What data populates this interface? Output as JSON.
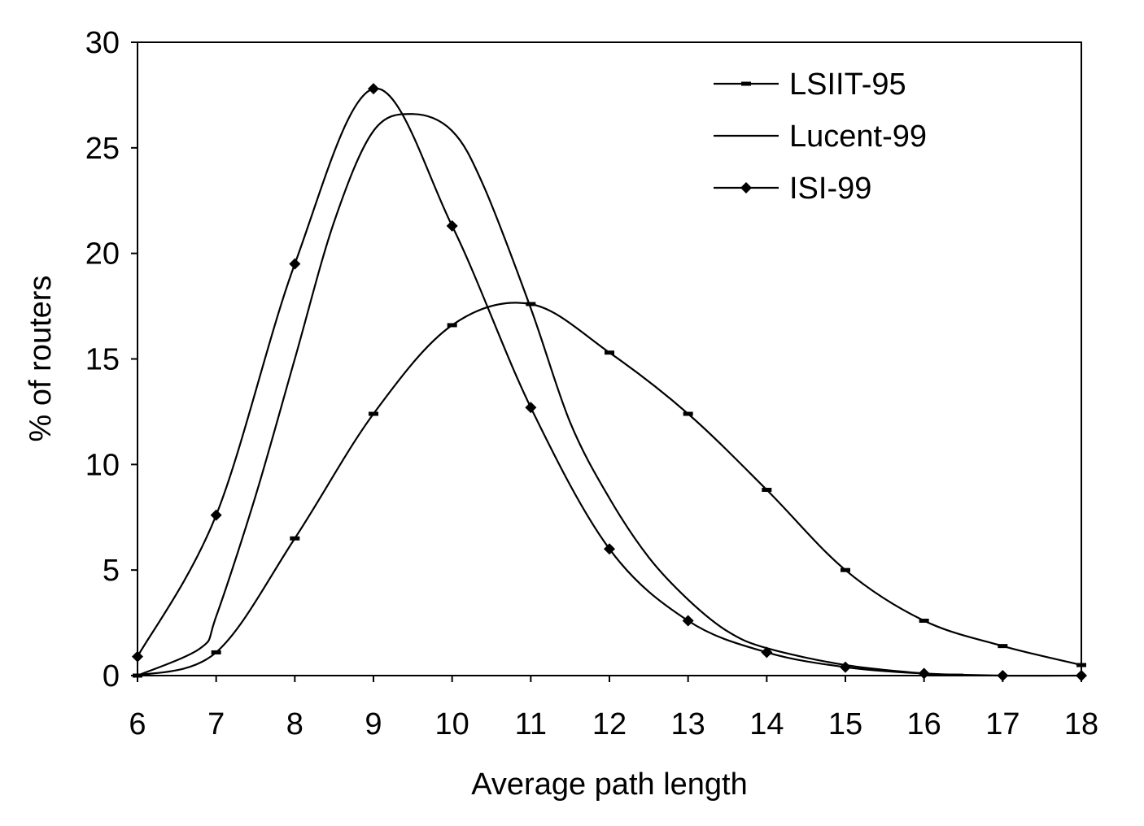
{
  "chart_data": {
    "type": "line",
    "title": "",
    "xlabel": "Average path length",
    "ylabel": "% of routers",
    "xlim": [
      6,
      18
    ],
    "ylim": [
      0,
      30
    ],
    "x_ticks": [
      6,
      7,
      8,
      9,
      10,
      11,
      12,
      13,
      14,
      15,
      16,
      17,
      18
    ],
    "y_ticks": [
      0,
      5,
      10,
      15,
      20,
      25,
      30
    ],
    "grid": false,
    "legend_position": "top-right",
    "series": [
      {
        "name": "LSIIT-95",
        "marker": "dash",
        "x": [
          6,
          7,
          8,
          9,
          10,
          11,
          12,
          13,
          14,
          15,
          16,
          17,
          18
        ],
        "y": [
          0,
          1.1,
          6.5,
          12.4,
          16.6,
          17.6,
          15.3,
          12.4,
          8.8,
          5.0,
          2.6,
          1.4,
          0.5
        ]
      },
      {
        "name": "Lucent-99",
        "marker": "none",
        "x": [
          6,
          6.8,
          7,
          7.5,
          8,
          8.5,
          9,
          9.5,
          10,
          10.4,
          11,
          11.5,
          12,
          12.5,
          13,
          13.5,
          14,
          15,
          16,
          16.5
        ],
        "y": [
          0,
          1.3,
          2.8,
          8.5,
          15,
          21.5,
          25.8,
          26.6,
          25.8,
          23.2,
          17.4,
          12,
          8.4,
          5.6,
          3.6,
          2.1,
          1.3,
          0.5,
          0.1,
          0.05
        ]
      },
      {
        "name": "ISI-99",
        "marker": "diamond",
        "x": [
          6,
          7,
          8,
          9,
          10,
          11,
          12,
          13,
          14,
          15,
          16,
          17,
          18
        ],
        "y": [
          0.9,
          7.6,
          19.5,
          27.8,
          21.3,
          12.7,
          6.0,
          2.6,
          1.1,
          0.4,
          0.1,
          0.0,
          0.0
        ]
      }
    ]
  }
}
